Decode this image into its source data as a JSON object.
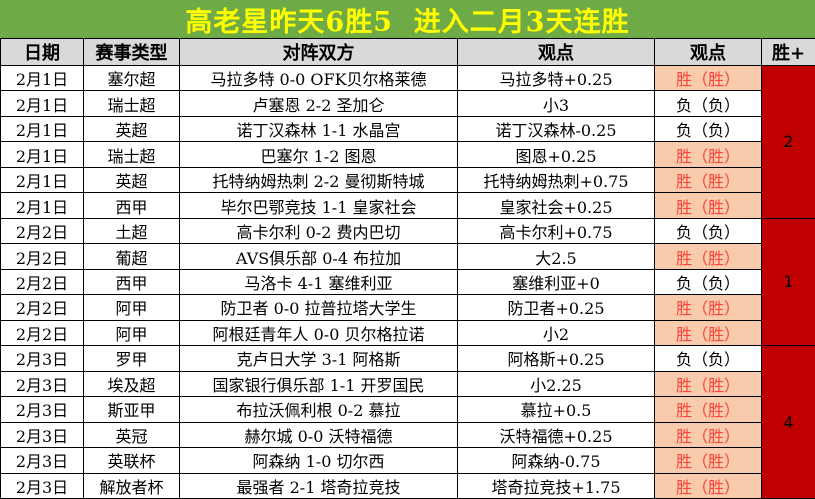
{
  "title": "高老星昨天6胜5  进入二月3天连胜",
  "colors": {
    "title_bg": "#6EAB47",
    "title_text": "#FFFF00",
    "header_bg": "#D9D9D9",
    "win_bg": "#F8CBAD",
    "win_text": "#F94438",
    "streak_bg": "#C00000"
  },
  "table": {
    "headers": [
      "日期",
      "赛事类型",
      "对阵双方",
      "观点",
      "观点",
      "胜+"
    ],
    "rows": [
      {
        "date": "2月1日",
        "league": "塞尔超",
        "match": "马拉多特 0-0 OFK贝尔格莱德",
        "pick": "马拉多特+0.25",
        "result": "胜（胜）",
        "win": true
      },
      {
        "date": "2月1日",
        "league": "瑞士超",
        "match": "卢塞恩 2-2 圣加仑",
        "pick": "小3",
        "result": "负（负）",
        "win": false
      },
      {
        "date": "2月1日",
        "league": "英超",
        "match": "诺丁汉森林 1-1 水晶宫",
        "pick": "诺丁汉森林-0.25",
        "result": "负（负）",
        "win": false
      },
      {
        "date": "2月1日",
        "league": "瑞士超",
        "match": "巴塞尔 1-2 图恩",
        "pick": "图恩+0.25",
        "result": "胜（胜）",
        "win": true
      },
      {
        "date": "2月1日",
        "league": "英超",
        "match": "托特纳姆热刺 2-2 曼彻斯特城",
        "pick": "托特纳姆热刺+0.75",
        "result": "胜（胜）",
        "win": true
      },
      {
        "date": "2月1日",
        "league": "西甲",
        "match": "毕尔巴鄂竞技 1-1 皇家社会",
        "pick": "皇家社会+0.25",
        "result": "胜（胜）",
        "win": true
      },
      {
        "date": "2月2日",
        "league": "土超",
        "match": "高卡尔利 0-2 费内巴切",
        "pick": "高卡尔利+0.75",
        "result": "负（负）",
        "win": false
      },
      {
        "date": "2月2日",
        "league": "葡超",
        "match": "AVS俱乐部 0-4 布拉加",
        "pick": "大2.5",
        "result": "胜（胜）",
        "win": true
      },
      {
        "date": "2月2日",
        "league": "西甲",
        "match": "马洛卡 4-1 塞维利亚",
        "pick": "塞维利亚+0",
        "result": "负（负）",
        "win": false
      },
      {
        "date": "2月2日",
        "league": "阿甲",
        "match": "防卫者 0-0 拉普拉塔大学生",
        "pick": "防卫者+0.25",
        "result": "胜（胜）",
        "win": true
      },
      {
        "date": "2月2日",
        "league": "阿甲",
        "match": "阿根廷青年人 0-0 贝尔格拉诺",
        "pick": "小2",
        "result": "胜（胜）",
        "win": true
      },
      {
        "date": "2月3日",
        "league": "罗甲",
        "match": "克卢日大学 3-1 阿格斯",
        "pick": "阿格斯+0.25",
        "result": "负（负）",
        "win": false
      },
      {
        "date": "2月3日",
        "league": "埃及超",
        "match": "国家银行俱乐部 1-1 开罗国民",
        "pick": "小2.25",
        "result": "胜（胜）",
        "win": true
      },
      {
        "date": "2月3日",
        "league": "斯亚甲",
        "match": "布拉沃佩利根 0-2 慕拉",
        "pick": "慕拉+0.5",
        "result": "胜（胜）",
        "win": true
      },
      {
        "date": "2月3日",
        "league": "英冠",
        "match": "赫尔城 0-0 沃特福德",
        "pick": "沃特福德+0.25",
        "result": "胜（胜）",
        "win": true
      },
      {
        "date": "2月3日",
        "league": "英联杯",
        "match": "阿森纳 1-0 切尔西",
        "pick": "阿森纳-0.75",
        "result": "胜（胜）",
        "win": true
      },
      {
        "date": "2月3日",
        "league": "解放者杯",
        "match": "最强者 2-1 塔奇拉竞技",
        "pick": "塔奇拉竞技+1.75",
        "result": "胜（胜）",
        "win": true
      }
    ],
    "win_groups": [
      {
        "value": "2",
        "span": 6
      },
      {
        "value": "1",
        "span": 5
      },
      {
        "value": "4",
        "span": 6
      }
    ]
  }
}
